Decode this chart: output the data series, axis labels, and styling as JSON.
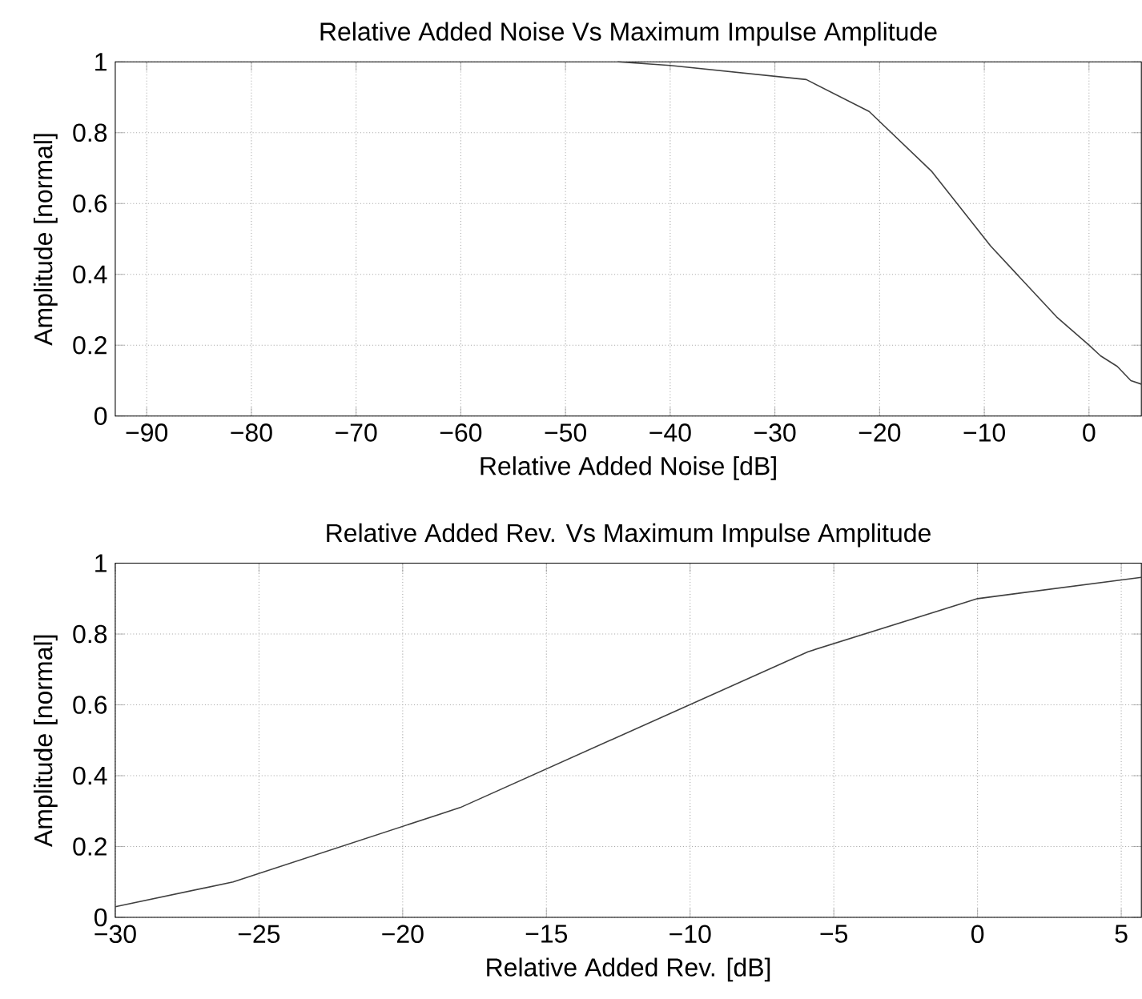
{
  "chart_data": [
    {
      "type": "line",
      "title": "Relative Added Noise Vs Maximum Impulse Amplitude",
      "xlabel": "Relative Added Noise [dB]",
      "ylabel": "Amplitude [normal]",
      "xlim": [
        -93,
        5
      ],
      "ylim": [
        0,
        1
      ],
      "xticks": [
        {
          "value": -90,
          "label": "−90"
        },
        {
          "value": -80,
          "label": "−80"
        },
        {
          "value": -70,
          "label": "−70"
        },
        {
          "value": -60,
          "label": "−60"
        },
        {
          "value": -50,
          "label": "−50"
        },
        {
          "value": -40,
          "label": "−40"
        },
        {
          "value": -30,
          "label": "−30"
        },
        {
          "value": -20,
          "label": "−20"
        },
        {
          "value": -10,
          "label": "−10"
        },
        0
      ],
      "yticks": [
        0,
        0.2,
        0.4,
        0.6,
        0.8,
        1
      ],
      "grid": true,
      "marker": "none",
      "line_style": "solid",
      "series": [
        {
          "color": "#404040",
          "x": [
            -45,
            -40,
            -27,
            -21,
            -15,
            -9.4,
            -3.1,
            0,
            1.1,
            2.7,
            4,
            5
          ],
          "values": [
            1,
            0.99,
            0.95,
            0.86,
            0.69,
            0.48,
            0.28,
            0.2,
            0.17,
            0.14,
            0.1,
            0.09
          ]
        }
      ]
    },
    {
      "type": "line",
      "title": "Relative Added Rev. Vs Maximum Impulse Amplitude",
      "xlabel": "Relative Added Rev. [dB]",
      "ylabel": "Amplitude [normal]",
      "xlim": [
        -30,
        5.7
      ],
      "ylim": [
        0,
        1
      ],
      "xticks": [
        {
          "value": -30,
          "label": "−30"
        },
        {
          "value": -25,
          "label": "−25"
        },
        {
          "value": -20,
          "label": "−20"
        },
        {
          "value": -15,
          "label": "−15"
        },
        {
          "value": -10,
          "label": "−10"
        },
        {
          "value": -5,
          "label": "−5"
        },
        0,
        5
      ],
      "yticks": [
        0,
        0.2,
        0.4,
        0.6,
        0.8,
        1
      ],
      "grid": true,
      "marker": "none",
      "line_style": "solid",
      "series": [
        {
          "color": "#404040",
          "x": [
            -30,
            -25.9,
            -18,
            -5.9,
            0,
            5.7
          ],
          "values": [
            0.03,
            0.1,
            0.31,
            0.75,
            0.9,
            0.96
          ]
        }
      ]
    }
  ]
}
